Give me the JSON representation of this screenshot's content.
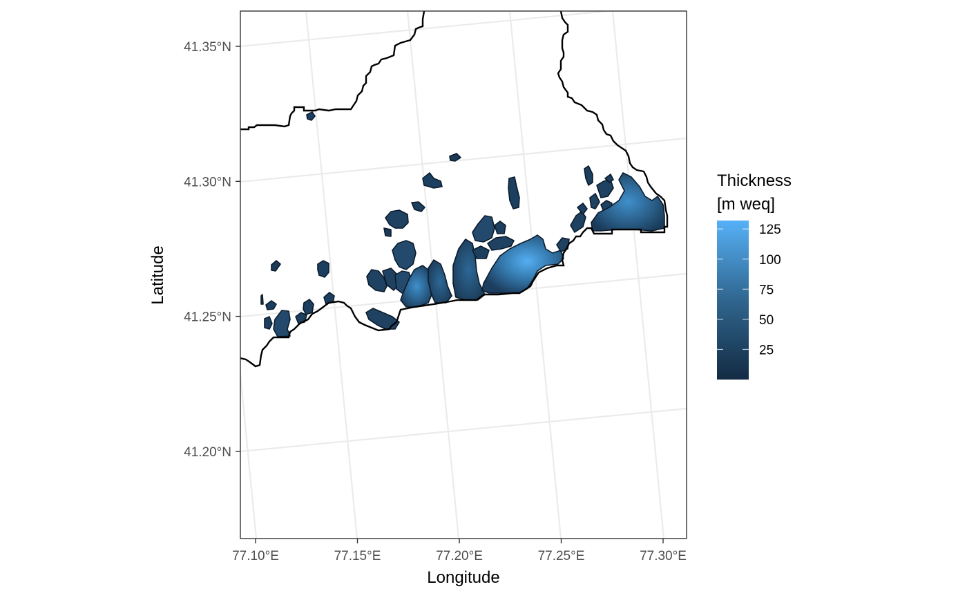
{
  "map": {
    "x_axis": {
      "title": "Longitude",
      "ticks": [
        {
          "label": "77.10°E",
          "lon": 77.1
        },
        {
          "label": "77.15°E",
          "lon": 77.15
        },
        {
          "label": "77.20°E",
          "lon": 77.2
        },
        {
          "label": "77.25°E",
          "lon": 77.25
        },
        {
          "label": "77.30°E",
          "lon": 77.3
        }
      ]
    },
    "y_axis": {
      "title": "Latitude",
      "ticks": [
        {
          "label": "41.35°N",
          "lat": 41.35
        },
        {
          "label": "41.30°N",
          "lat": 41.3
        },
        {
          "label": "41.25°N",
          "lat": 41.25
        },
        {
          "label": "41.20°N",
          "lat": 41.2
        }
      ]
    },
    "legend": {
      "title_line1": "Thickness",
      "title_line2": "[m weq]",
      "breaks": [
        {
          "label": "125",
          "value": 125
        },
        {
          "label": "100",
          "value": 100
        },
        {
          "label": "75",
          "value": 75
        },
        {
          "label": "50",
          "value": 50
        },
        {
          "label": "25",
          "value": 25
        }
      ],
      "range": [
        0,
        132
      ],
      "color_low": "#132b43",
      "color_high": "#56b1f7"
    },
    "colors": {
      "grid": "#ebebeb",
      "panel_border": "#333333",
      "boundary": "#000000"
    }
  }
}
